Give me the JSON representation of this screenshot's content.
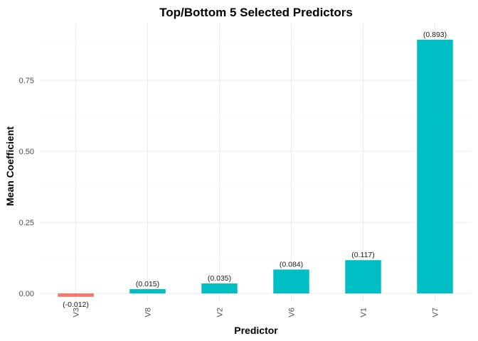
{
  "chart_data": {
    "type": "bar",
    "title": "Top/Bottom 5 Selected Predictors",
    "xlabel": "Predictor",
    "ylabel": "Mean Coefficient",
    "categories": [
      "V3",
      "V8",
      "V2",
      "V6",
      "V1",
      "V7"
    ],
    "values": [
      -0.012,
      0.015,
      0.035,
      0.084,
      0.117,
      0.893
    ],
    "data_labels": [
      "(-0.012)",
      "(0.015)",
      "(0.035)",
      "(0.084)",
      "(0.117)",
      "(0.893)"
    ],
    "ylim": [
      -0.03,
      0.95
    ],
    "yticks": [
      0.0,
      0.25,
      0.5,
      0.75
    ],
    "ytick_labels": [
      "0.00",
      "0.25",
      "0.50",
      "0.75"
    ],
    "grid": true,
    "legend": "none",
    "colors": {
      "negative": "#F8766D",
      "positive": "#00BFC4"
    }
  }
}
